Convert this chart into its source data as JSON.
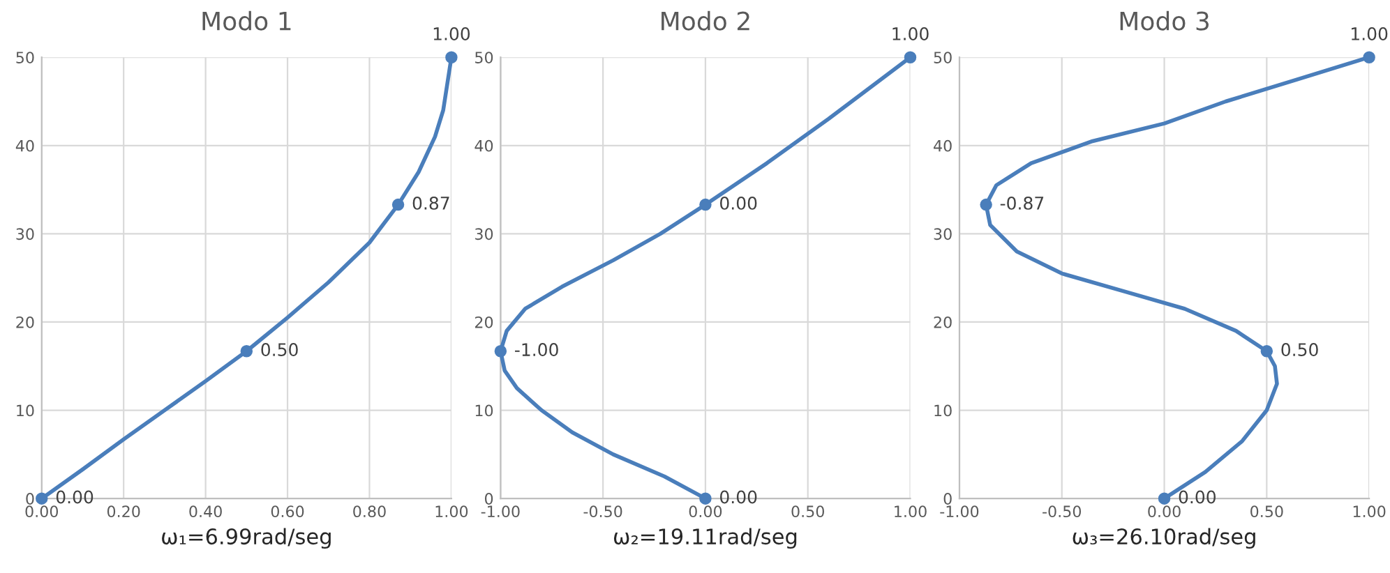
{
  "chart_data": [
    {
      "type": "line",
      "title": "Modo 1",
      "xlabel": "ω₁=6.99rad/seg",
      "series": [
        {
          "color": "#4a7ebb",
          "x": [
            0,
            0.1,
            0.2,
            0.3,
            0.4,
            0.5,
            0.6,
            0.7,
            0.8,
            0.87,
            0.92,
            0.96,
            0.98,
            0.99,
            1
          ],
          "values": [
            0,
            3.3,
            6.7,
            10,
            13.3,
            16.7,
            20.5,
            24.5,
            29,
            33.3,
            37,
            41,
            44,
            47,
            50
          ]
        },
        {
          "type": "scatter",
          "color": "#4a7ebb",
          "x": [
            0,
            0.5,
            0.87,
            1
          ],
          "values": [
            0,
            16.7,
            33.3,
            50
          ]
        }
      ],
      "annotations": [
        {
          "text": "0.00",
          "x": 0,
          "y": 0
        },
        {
          "text": "0.50",
          "x": 0.5,
          "y": 16.7
        },
        {
          "text": "0.87",
          "x": 0.87,
          "y": 33.3
        },
        {
          "text": "1.00",
          "x": 1,
          "y": 50
        }
      ],
      "xlim": [
        0,
        1
      ],
      "xticks": [
        {
          "value": 0,
          "label": "0.00"
        },
        {
          "value": 0.2,
          "label": "0.20"
        },
        {
          "value": 0.4,
          "label": "0.40"
        },
        {
          "value": 0.6,
          "label": "0.60"
        },
        {
          "value": 0.8,
          "label": "0.80"
        },
        {
          "value": 1,
          "label": "1.00"
        }
      ],
      "ylim": [
        0,
        50
      ],
      "yticks": [
        0,
        10,
        20,
        30,
        40,
        50
      ],
      "grid": true,
      "line_style": "solid",
      "legend": false
    },
    {
      "type": "line",
      "title": "Modo 2",
      "xlabel": "ω₂=19.11rad/seg",
      "series": [
        {
          "color": "#4a7ebb",
          "x": [
            0,
            -0.2,
            -0.45,
            -0.65,
            -0.8,
            -0.92,
            -0.98,
            -1,
            -0.97,
            -0.88,
            -0.7,
            -0.45,
            -0.22,
            0,
            0.3,
            0.6,
            1
          ],
          "values": [
            0,
            2.5,
            5,
            7.5,
            10,
            12.5,
            14.5,
            16.7,
            19,
            21.5,
            24,
            27,
            30,
            33.3,
            38,
            43,
            50
          ]
        },
        {
          "type": "scatter",
          "color": "#4a7ebb",
          "x": [
            0,
            -1,
            0,
            1
          ],
          "values": [
            0,
            16.7,
            33.3,
            50
          ]
        }
      ],
      "annotations": [
        {
          "text": "0.00",
          "x": 0,
          "y": 0
        },
        {
          "text": "-1.00",
          "x": -1,
          "y": 16.7
        },
        {
          "text": "0.00",
          "x": 0,
          "y": 33.3
        },
        {
          "text": "1.00",
          "x": 1,
          "y": 50
        }
      ],
      "xlim": [
        -1,
        1
      ],
      "xticks": [
        {
          "value": -1,
          "label": "-1.00"
        },
        {
          "value": -0.5,
          "label": "-0.50"
        },
        {
          "value": 0,
          "label": "0.00"
        },
        {
          "value": 0.5,
          "label": "0.50"
        },
        {
          "value": 1,
          "label": "1.00"
        }
      ],
      "ylim": [
        0,
        50
      ],
      "yticks": [
        0,
        10,
        20,
        30,
        40,
        50
      ],
      "grid": true,
      "line_style": "solid",
      "legend": false
    },
    {
      "type": "line",
      "title": "Modo 3",
      "xlabel": "ω₃=26.10rad/seg",
      "series": [
        {
          "color": "#4a7ebb",
          "x": [
            0,
            0.2,
            0.38,
            0.5,
            0.55,
            0.54,
            0.5,
            0.35,
            0.1,
            -0.2,
            -0.5,
            -0.72,
            -0.85,
            -0.87,
            -0.82,
            -0.65,
            -0.35,
            0,
            0.3,
            0.65,
            1
          ],
          "values": [
            0,
            3,
            6.5,
            10,
            13,
            15,
            16.7,
            19,
            21.5,
            23.5,
            25.5,
            28,
            31,
            33.3,
            35.5,
            38,
            40.5,
            42.5,
            45,
            47.5,
            50
          ]
        },
        {
          "type": "scatter",
          "color": "#4a7ebb",
          "x": [
            0,
            0.5,
            -0.87,
            1
          ],
          "values": [
            0,
            16.7,
            33.3,
            50
          ]
        }
      ],
      "annotations": [
        {
          "text": "0.00",
          "x": 0,
          "y": 0
        },
        {
          "text": "0.50",
          "x": 0.5,
          "y": 16.7
        },
        {
          "text": "-0.87",
          "x": -0.87,
          "y": 33.3
        },
        {
          "text": "1.00",
          "x": 1,
          "y": 50
        }
      ],
      "xlim": [
        -1,
        1
      ],
      "xticks": [
        {
          "value": -1,
          "label": "-1.00"
        },
        {
          "value": -0.5,
          "label": "-0.50"
        },
        {
          "value": 0,
          "label": "0.00"
        },
        {
          "value": 0.5,
          "label": "0.50"
        },
        {
          "value": 1,
          "label": "1.00"
        }
      ],
      "ylim": [
        0,
        50
      ],
      "yticks": [
        0,
        10,
        20,
        30,
        40,
        50
      ],
      "grid": true,
      "line_style": "solid",
      "legend": false
    }
  ]
}
